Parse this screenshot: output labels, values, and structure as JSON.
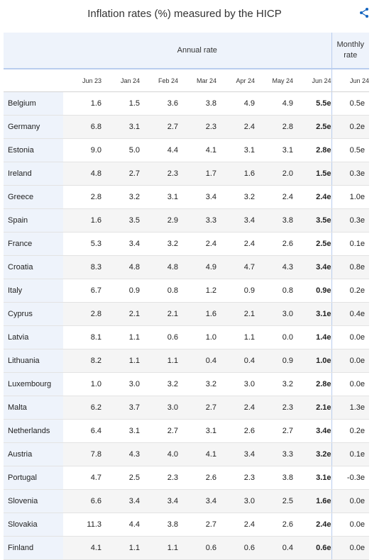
{
  "title": "Inflation rates (%) measured by the HICP",
  "share_icon": "share-icon",
  "header": {
    "annual": "Annual rate",
    "monthly": "Monthly rate"
  },
  "columns": [
    "Jun 23",
    "Jan 24",
    "Feb 24",
    "Mar 24",
    "Apr 24",
    "May 24",
    "Jun 24",
    "Jun 24"
  ],
  "rows": [
    {
      "country": "Belgium",
      "v": [
        "1.6",
        "1.5",
        "3.6",
        "3.8",
        "4.9",
        "4.9",
        "5.5e",
        "0.5e"
      ]
    },
    {
      "country": "Germany",
      "v": [
        "6.8",
        "3.1",
        "2.7",
        "2.3",
        "2.4",
        "2.8",
        "2.5e",
        "0.2e"
      ]
    },
    {
      "country": "Estonia",
      "v": [
        "9.0",
        "5.0",
        "4.4",
        "4.1",
        "3.1",
        "3.1",
        "2.8e",
        "0.5e"
      ]
    },
    {
      "country": "Ireland",
      "v": [
        "4.8",
        "2.7",
        "2.3",
        "1.7",
        "1.6",
        "2.0",
        "1.5e",
        "0.3e"
      ]
    },
    {
      "country": "Greece",
      "v": [
        "2.8",
        "3.2",
        "3.1",
        "3.4",
        "3.2",
        "2.4",
        "2.4e",
        "1.0e"
      ]
    },
    {
      "country": "Spain",
      "v": [
        "1.6",
        "3.5",
        "2.9",
        "3.3",
        "3.4",
        "3.8",
        "3.5e",
        "0.3e"
      ]
    },
    {
      "country": "France",
      "v": [
        "5.3",
        "3.4",
        "3.2",
        "2.4",
        "2.4",
        "2.6",
        "2.5e",
        "0.1e"
      ]
    },
    {
      "country": "Croatia",
      "v": [
        "8.3",
        "4.8",
        "4.8",
        "4.9",
        "4.7",
        "4.3",
        "3.4e",
        "0.8e"
      ]
    },
    {
      "country": "Italy",
      "v": [
        "6.7",
        "0.9",
        "0.8",
        "1.2",
        "0.9",
        "0.8",
        "0.9e",
        "0.2e"
      ]
    },
    {
      "country": "Cyprus",
      "v": [
        "2.8",
        "2.1",
        "2.1",
        "1.6",
        "2.1",
        "3.0",
        "3.1e",
        "0.4e"
      ]
    },
    {
      "country": "Latvia",
      "v": [
        "8.1",
        "1.1",
        "0.6",
        "1.0",
        "1.1",
        "0.0",
        "1.4e",
        "0.0e"
      ]
    },
    {
      "country": "Lithuania",
      "v": [
        "8.2",
        "1.1",
        "1.1",
        "0.4",
        "0.4",
        "0.9",
        "1.0e",
        "0.0e"
      ]
    },
    {
      "country": "Luxembourg",
      "v": [
        "1.0",
        "3.0",
        "3.2",
        "3.2",
        "3.0",
        "3.2",
        "2.8e",
        "0.0e"
      ]
    },
    {
      "country": "Malta",
      "v": [
        "6.2",
        "3.7",
        "3.0",
        "2.7",
        "2.4",
        "2.3",
        "2.1e",
        "1.3e"
      ]
    },
    {
      "country": "Netherlands",
      "v": [
        "6.4",
        "3.1",
        "2.7",
        "3.1",
        "2.6",
        "2.7",
        "3.4e",
        "0.2e"
      ]
    },
    {
      "country": "Austria",
      "v": [
        "7.8",
        "4.3",
        "4.0",
        "4.1",
        "3.4",
        "3.3",
        "3.2e",
        "0.1e"
      ]
    },
    {
      "country": "Portugal",
      "v": [
        "4.7",
        "2.5",
        "2.3",
        "2.6",
        "2.3",
        "3.8",
        "3.1e",
        "-0.3e"
      ]
    },
    {
      "country": "Slovenia",
      "v": [
        "6.6",
        "3.4",
        "3.4",
        "3.4",
        "3.0",
        "2.5",
        "1.6e",
        "0.0e"
      ]
    },
    {
      "country": "Slovakia",
      "v": [
        "11.3",
        "4.4",
        "3.8",
        "2.7",
        "2.4",
        "2.6",
        "2.4e",
        "0.0e"
      ]
    },
    {
      "country": "Finland",
      "v": [
        "4.1",
        "1.1",
        "1.1",
        "0.6",
        "0.6",
        "0.4",
        "0.6e",
        "0.0e"
      ]
    }
  ]
}
